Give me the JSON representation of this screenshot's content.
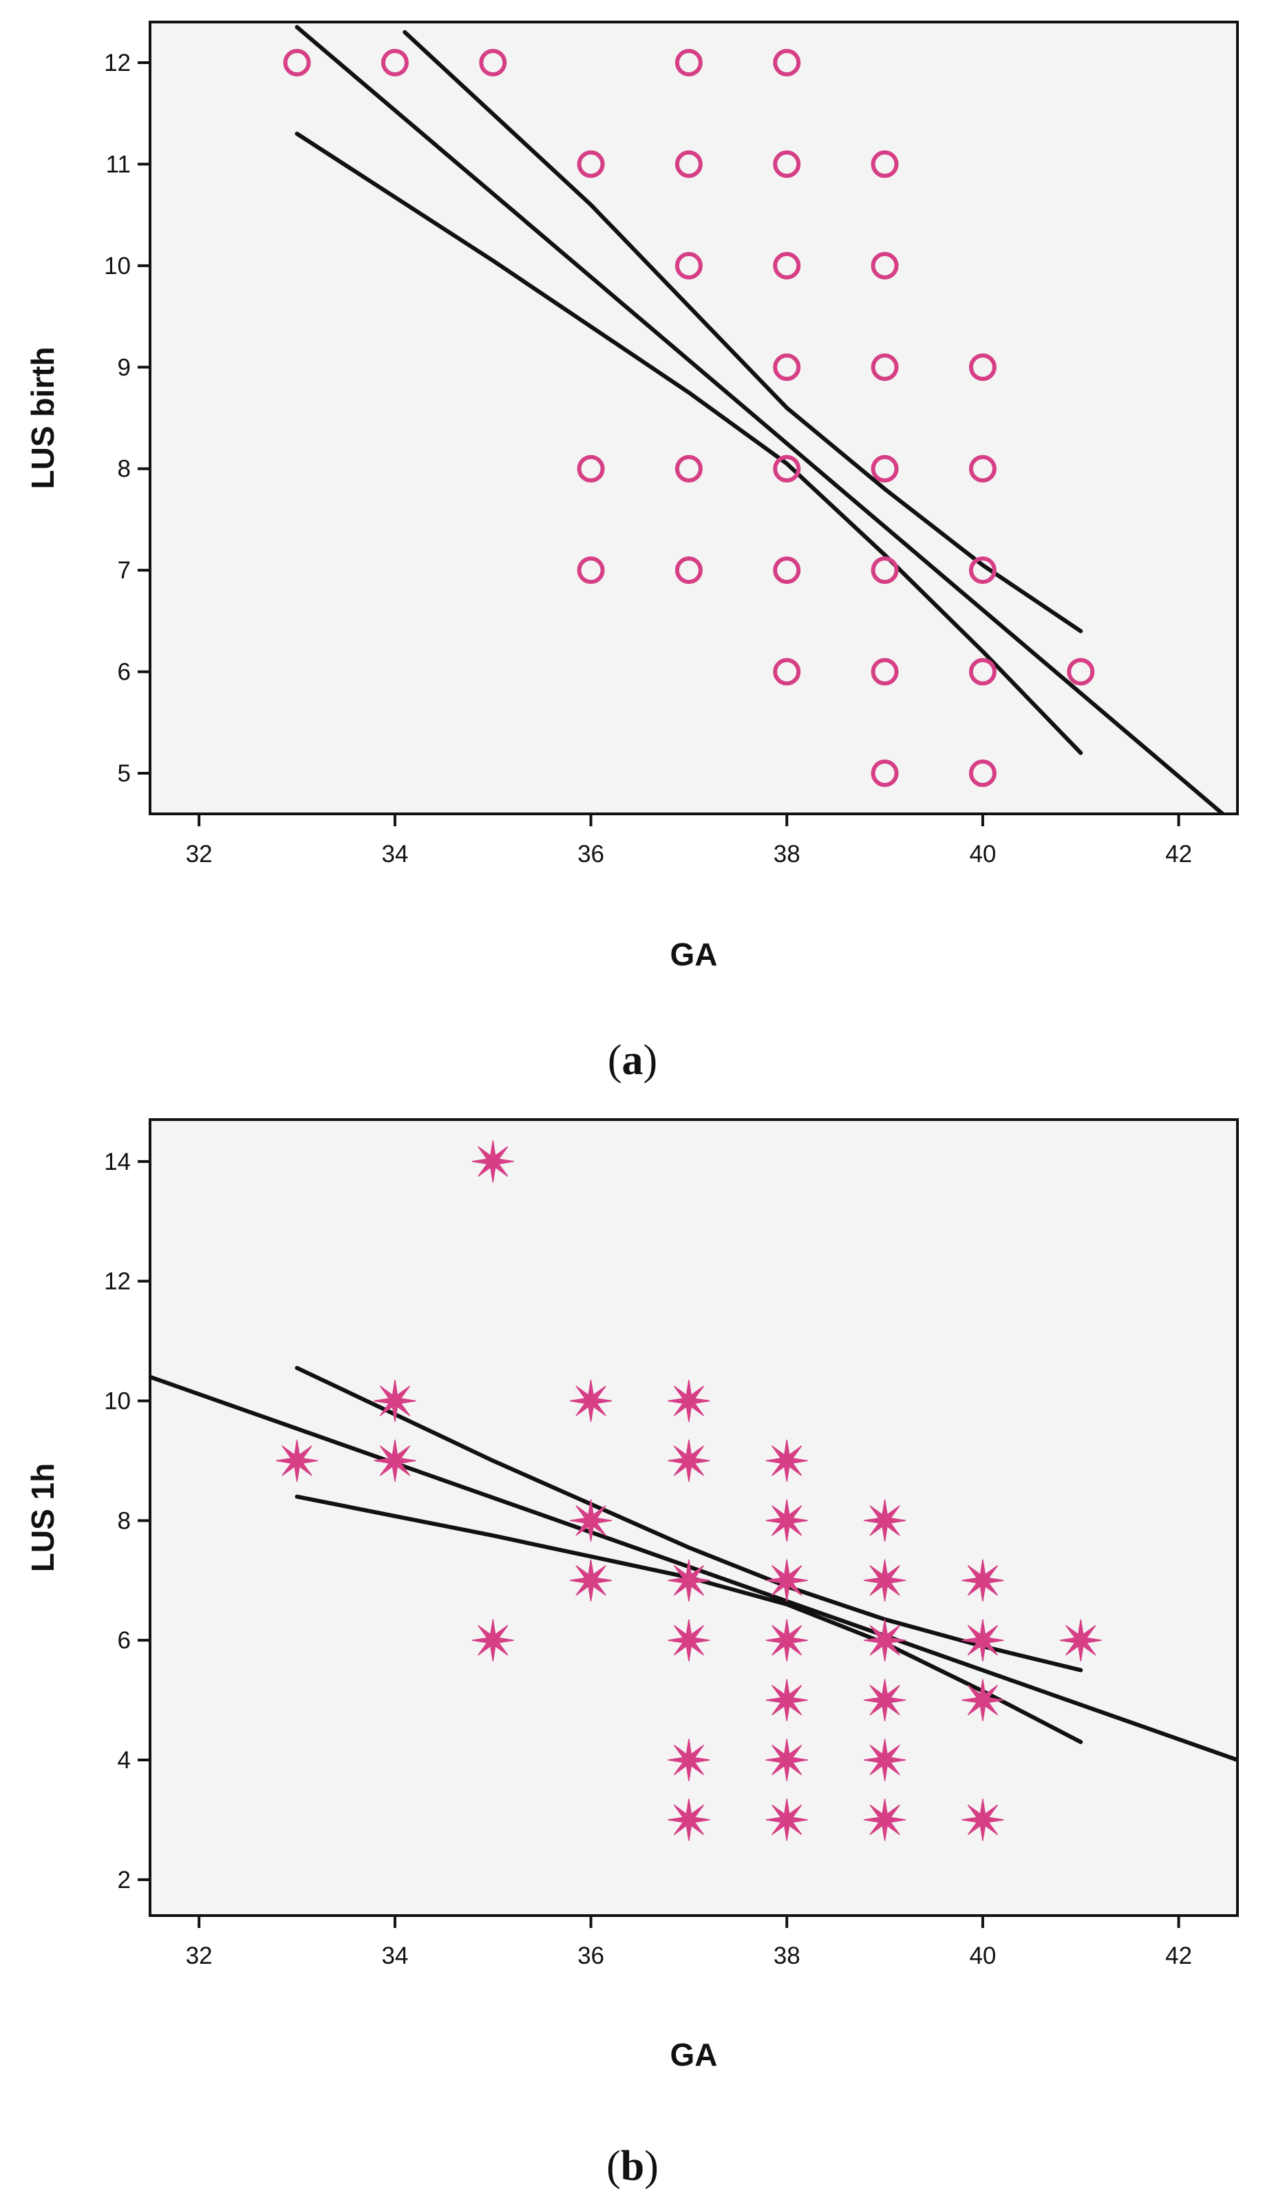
{
  "chart_data": [
    {
      "type": "scatter",
      "panel": "a",
      "panel_label": "a",
      "xlabel": "GA",
      "ylabel": "LUS birth",
      "xlim": [
        31.5,
        42.6
      ],
      "ylim": [
        4.6,
        12.4
      ],
      "xticks": [
        32,
        34,
        36,
        38,
        40,
        42
      ],
      "yticks": [
        5,
        6,
        7,
        8,
        9,
        10,
        11,
        12
      ],
      "marker": "circle",
      "marker_color": "#d63f86",
      "background": "#f4f4f4",
      "points": [
        {
          "x": 33,
          "y": 12
        },
        {
          "x": 34,
          "y": 12
        },
        {
          "x": 35,
          "y": 12
        },
        {
          "x": 37,
          "y": 12
        },
        {
          "x": 38,
          "y": 12
        },
        {
          "x": 36,
          "y": 11
        },
        {
          "x": 37,
          "y": 11
        },
        {
          "x": 38,
          "y": 11
        },
        {
          "x": 39,
          "y": 11
        },
        {
          "x": 37,
          "y": 10
        },
        {
          "x": 38,
          "y": 10
        },
        {
          "x": 39,
          "y": 10
        },
        {
          "x": 38,
          "y": 9
        },
        {
          "x": 39,
          "y": 9
        },
        {
          "x": 40,
          "y": 9
        },
        {
          "x": 36,
          "y": 8
        },
        {
          "x": 37,
          "y": 8
        },
        {
          "x": 38,
          "y": 8
        },
        {
          "x": 39,
          "y": 8
        },
        {
          "x": 40,
          "y": 8
        },
        {
          "x": 36,
          "y": 7
        },
        {
          "x": 37,
          "y": 7
        },
        {
          "x": 38,
          "y": 7
        },
        {
          "x": 39,
          "y": 7
        },
        {
          "x": 40,
          "y": 7
        },
        {
          "x": 38,
          "y": 6
        },
        {
          "x": 39,
          "y": 6
        },
        {
          "x": 40,
          "y": 6
        },
        {
          "x": 41,
          "y": 6
        },
        {
          "x": 39,
          "y": 5
        },
        {
          "x": 40,
          "y": 5
        }
      ],
      "lines": [
        {
          "name": "fit",
          "points": [
            [
              33,
              12.35
            ],
            [
              42.45,
              4.6
            ]
          ]
        },
        {
          "name": "ci-upper",
          "points": [
            [
              34.1,
              12.3
            ],
            [
              36,
              10.6
            ],
            [
              38,
              8.6
            ],
            [
              39,
              7.8
            ],
            [
              40,
              7.05
            ],
            [
              41,
              6.4
            ]
          ]
        },
        {
          "name": "ci-lower",
          "points": [
            [
              33,
              11.3
            ],
            [
              35,
              10.05
            ],
            [
              37,
              8.75
            ],
            [
              38,
              8.05
            ],
            [
              39,
              7.15
            ],
            [
              40,
              6.2
            ],
            [
              41,
              5.2
            ]
          ]
        }
      ]
    },
    {
      "type": "scatter",
      "panel": "b",
      "panel_label": "b",
      "xlabel": "GA",
      "ylabel": "LUS 1h",
      "xlim": [
        31.5,
        42.6
      ],
      "ylim": [
        1.4,
        14.7
      ],
      "xticks": [
        32,
        34,
        36,
        38,
        40,
        42
      ],
      "yticks": [
        2,
        4,
        6,
        8,
        10,
        12,
        14
      ],
      "marker": "star",
      "marker_color": "#d63f86",
      "background": "#f4f4f4",
      "points": [
        {
          "x": 35,
          "y": 14
        },
        {
          "x": 34,
          "y": 10
        },
        {
          "x": 36,
          "y": 10
        },
        {
          "x": 37,
          "y": 10
        },
        {
          "x": 33,
          "y": 9
        },
        {
          "x": 34,
          "y": 9
        },
        {
          "x": 37,
          "y": 9
        },
        {
          "x": 38,
          "y": 9
        },
        {
          "x": 36,
          "y": 8
        },
        {
          "x": 38,
          "y": 8
        },
        {
          "x": 39,
          "y": 8
        },
        {
          "x": 36,
          "y": 7
        },
        {
          "x": 37,
          "y": 7
        },
        {
          "x": 38,
          "y": 7
        },
        {
          "x": 39,
          "y": 7
        },
        {
          "x": 40,
          "y": 7
        },
        {
          "x": 35,
          "y": 6
        },
        {
          "x": 37,
          "y": 6
        },
        {
          "x": 38,
          "y": 6
        },
        {
          "x": 39,
          "y": 6
        },
        {
          "x": 40,
          "y": 6
        },
        {
          "x": 41,
          "y": 6
        },
        {
          "x": 38,
          "y": 5
        },
        {
          "x": 39,
          "y": 5
        },
        {
          "x": 40,
          "y": 5
        },
        {
          "x": 37,
          "y": 4
        },
        {
          "x": 38,
          "y": 4
        },
        {
          "x": 39,
          "y": 4
        },
        {
          "x": 37,
          "y": 3
        },
        {
          "x": 38,
          "y": 3
        },
        {
          "x": 39,
          "y": 3
        },
        {
          "x": 40,
          "y": 3
        }
      ],
      "lines": [
        {
          "name": "fit",
          "points": [
            [
              31.5,
              10.4
            ],
            [
              42.6,
              4.0
            ]
          ]
        },
        {
          "name": "ci-upper",
          "points": [
            [
              33,
              10.55
            ],
            [
              35,
              9.0
            ],
            [
              37,
              7.55
            ],
            [
              38,
              6.9
            ],
            [
              39,
              6.35
            ],
            [
              40,
              5.9
            ],
            [
              41,
              5.5
            ]
          ]
        },
        {
          "name": "ci-lower",
          "points": [
            [
              33,
              8.4
            ],
            [
              35,
              7.75
            ],
            [
              37,
              7.05
            ],
            [
              38,
              6.6
            ],
            [
              39,
              5.95
            ],
            [
              40,
              5.15
            ],
            [
              41,
              4.3
            ]
          ]
        }
      ]
    }
  ]
}
